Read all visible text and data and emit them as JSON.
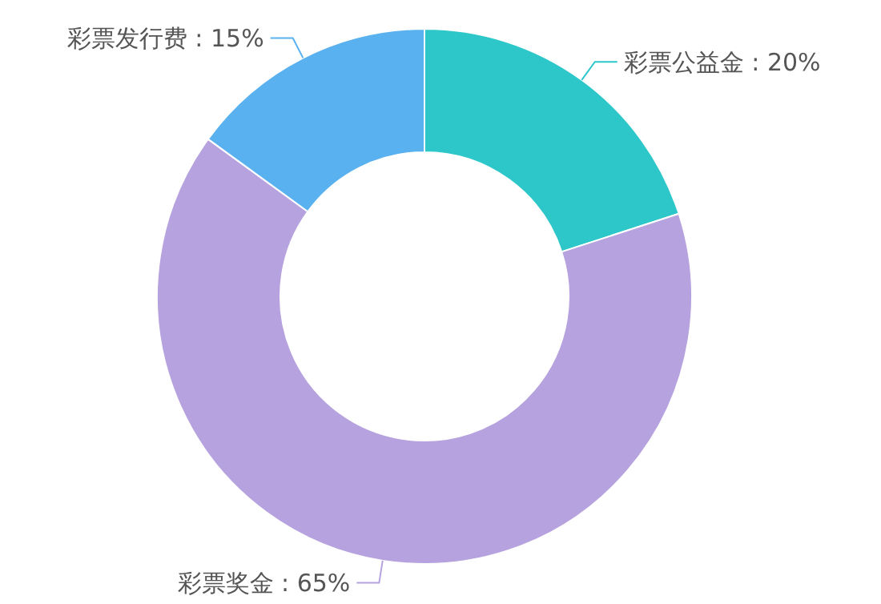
{
  "chart_data": {
    "type": "donut",
    "categories": [
      "彩票公益金",
      "彩票奖金",
      "彩票发行费"
    ],
    "values": [
      20,
      65,
      15
    ],
    "colors": [
      "#2ec7c9",
      "#b6a2de",
      "#5ab1ef"
    ],
    "value_labels": [
      "20%",
      "65%",
      "15%"
    ]
  }
}
